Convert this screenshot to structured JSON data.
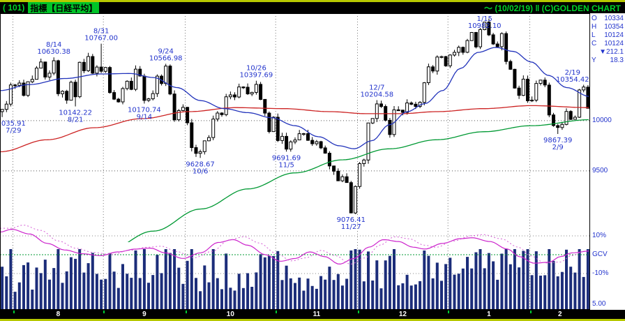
{
  "title_bar": {
    "left_prefix": "( 101)",
    "left_highlight": "指標【日経平均】",
    "right": "～ (10/02/19) ‖ (C)GOLDEN CHART"
  },
  "quote_panel": {
    "rows": [
      {
        "label": "O",
        "value": "10334"
      },
      {
        "label": "H",
        "value": "10354"
      },
      {
        "label": "L",
        "value": "10124"
      },
      {
        "label": "C",
        "value": "10124"
      },
      {
        "label": "",
        "value": "▼212.1"
      },
      {
        "label": "Y",
        "value": "18.3"
      }
    ]
  },
  "axis": {
    "price_labels": [
      {
        "text": "10000",
        "price": 10000
      },
      {
        "text": "9500",
        "price": 9500
      }
    ],
    "lower_labels": [
      {
        "text": "10%",
        "pct": 10
      },
      {
        "text": "GCV",
        "pct": 0
      },
      {
        "text": "-10%",
        "pct": -10
      }
    ],
    "volume_scale_label": "5.00"
  },
  "colors": {
    "background": "#000000",
    "panel_bg": "#ffffff",
    "edge_line": "#b6c800",
    "title_green": "#00d42a",
    "title_highlight_bg": "#00c428",
    "blue_text": "#2233cc",
    "candle": "#000000",
    "ma_blue": "#2233bb",
    "ma_red": "#cc2222",
    "ma_green": "#009933",
    "volume_bar": "#1c2d7a",
    "oscillator": "#cc22cc",
    "oscillator_dotted": "#d45cd4",
    "grid_dot": "#777777",
    "month_text": "#ffffff",
    "tick_green": "#00cc33"
  },
  "chart_data": {
    "type": "candlestick",
    "title": "日経平均 daily with moving averages, volume and GCV oscillator",
    "price_range_top": 11070,
    "price_range_bottom": 8790,
    "y_gridlines": [
      10000,
      9500
    ],
    "open_first": 10090,
    "closes": [
      10113,
      10165,
      10356,
      10352,
      10375,
      10252,
      10388,
      10412,
      10524,
      10585,
      10435,
      10473,
      10597,
      10268,
      10293,
      10204,
      10383,
      10238,
      10581,
      10497,
      10639,
      10473,
      10534,
      10492,
      10530,
      10280,
      10214,
      10187,
      10320,
      10393,
      10312,
      10513,
      10444,
      10202,
      10218,
      10270,
      10444,
      10370,
      10544,
      10266,
      10009,
      10100,
      10133,
      9979,
      9732,
      9674,
      9691,
      9799,
      9832,
      10016,
      10076,
      10060,
      10238,
      10257,
      10236,
      10336,
      10333,
      10267,
      10282,
      10362,
      10212,
      10075,
      9891,
      10034,
      9802,
      9844,
      9717,
      9789,
      9808,
      9870,
      9871,
      9804,
      9770,
      9791,
      9729,
      9676,
      9549,
      9497,
      9401,
      9441,
      9383,
      9081,
      9345,
      9572,
      9608,
      9977,
      10022,
      10167,
      10141,
      10004,
      9862,
      10108,
      10105,
      10083,
      10177,
      10164,
      10142,
      10183,
      10378,
      10536,
      10494,
      10634,
      10638,
      10546,
      10654,
      10681,
      10731,
      10681,
      10798,
      10879,
      10735,
      10907,
      10982,
      10855,
      10764,
      10737,
      10868,
      10590,
      10512,
      10325,
      10252,
      10414,
      10198,
      10205,
      10371,
      10404,
      10355,
      10057,
      9951,
      9932,
      9963,
      10092,
      10013,
      10034,
      10306,
      10335,
      10123.58
    ],
    "last_candle": {
      "open": 10334,
      "high": 10354.42,
      "low": 10123.58,
      "close": 10123.58
    },
    "month_start_indices": [
      3,
      24,
      43,
      64,
      83,
      104,
      123
    ],
    "month_labels": [
      "8",
      "9",
      "10",
      "11",
      "12",
      "1",
      "2"
    ],
    "key_points": [
      {
        "index": 12,
        "kind": "high",
        "price": 10630.38,
        "value_text": "10630.38",
        "date_text": "8/14"
      },
      {
        "index": 23,
        "kind": "high",
        "price": 10767.0,
        "value_text": "10767.00",
        "date_text": "8/31"
      },
      {
        "index": 38,
        "kind": "high",
        "price": 10566.98,
        "value_text": "10566.98",
        "date_text": "9/24"
      },
      {
        "index": 59,
        "kind": "high",
        "price": 10397.69,
        "value_text": "10397.69",
        "date_text": "10/26"
      },
      {
        "index": 87,
        "kind": "high",
        "price": 10204.58,
        "value_text": "10204.58",
        "date_text": "12/7"
      },
      {
        "index": 112,
        "kind": "high",
        "price": 10982.1,
        "value_text": "10982.10",
        "date_text": "1/15"
      },
      {
        "index": 136,
        "kind": "high",
        "price": 10354.42,
        "value_text": "10354.42",
        "date_text": "2/19"
      },
      {
        "index": 0,
        "kind": "low",
        "price": 10035.91,
        "value_text": "035.91",
        "date_text": "7/29"
      },
      {
        "index": 17,
        "kind": "low",
        "price": 10142.22,
        "value_text": "10142.22",
        "date_text": "8/21"
      },
      {
        "index": 33,
        "kind": "low",
        "price": 10170.74,
        "value_text": "10170.74",
        "date_text": "9/14"
      },
      {
        "index": 46,
        "kind": "low",
        "price": 9628.67,
        "value_text": "9628.67",
        "date_text": "10/6"
      },
      {
        "index": 66,
        "kind": "low",
        "price": 9691.69,
        "value_text": "9691.69",
        "date_text": "11/5"
      },
      {
        "index": 81,
        "kind": "low",
        "price": 9076.41,
        "value_text": "9076.41",
        "date_text": "11/27"
      },
      {
        "index": 129,
        "kind": "low",
        "price": 9867.39,
        "value_text": "9867.39",
        "date_text": "2/9"
      }
    ],
    "ma_lines": [
      {
        "name": "long-term-ma",
        "color": "#009933",
        "anchors": [
          [
            0,
            8400
          ],
          [
            0.1,
            8550
          ],
          [
            0.18,
            8700
          ],
          [
            0.26,
            8900
          ],
          [
            0.34,
            9120
          ],
          [
            0.42,
            9320
          ],
          [
            0.5,
            9480
          ],
          [
            0.58,
            9610
          ],
          [
            0.66,
            9720
          ],
          [
            0.74,
            9810
          ],
          [
            0.82,
            9890
          ],
          [
            0.9,
            9950
          ],
          [
            1,
            10010
          ]
        ]
      },
      {
        "name": "medium-term-ma",
        "color": "#cc2222",
        "anchors": [
          [
            0,
            9690
          ],
          [
            0.08,
            9810
          ],
          [
            0.16,
            9930
          ],
          [
            0.24,
            10020
          ],
          [
            0.32,
            10090
          ],
          [
            0.4,
            10130
          ],
          [
            0.48,
            10120
          ],
          [
            0.56,
            10090
          ],
          [
            0.62,
            10070
          ],
          [
            0.68,
            10070
          ],
          [
            0.74,
            10090
          ],
          [
            0.82,
            10120
          ],
          [
            0.9,
            10150
          ],
          [
            1,
            10130
          ]
        ]
      },
      {
        "name": "short-term-ma",
        "color": "#2233bb",
        "anchors": [
          [
            0,
            10300
          ],
          [
            0.05,
            10360
          ],
          [
            0.11,
            10420
          ],
          [
            0.17,
            10465
          ],
          [
            0.22,
            10470
          ],
          [
            0.26,
            10430
          ],
          [
            0.3,
            10330
          ],
          [
            0.34,
            10200
          ],
          [
            0.38,
            10120
          ],
          [
            0.42,
            10080
          ],
          [
            0.46,
            10030
          ],
          [
            0.5,
            9950
          ],
          [
            0.54,
            9840
          ],
          [
            0.575,
            9750
          ],
          [
            0.6,
            9720
          ],
          [
            0.63,
            9800
          ],
          [
            0.66,
            9960
          ],
          [
            0.69,
            10090
          ],
          [
            0.72,
            10170
          ],
          [
            0.75,
            10300
          ],
          [
            0.78,
            10520
          ],
          [
            0.81,
            10680
          ],
          [
            0.84,
            10730
          ],
          [
            0.87,
            10690
          ],
          [
            0.9,
            10585
          ],
          [
            0.93,
            10450
          ],
          [
            0.96,
            10330
          ],
          [
            1,
            10240
          ]
        ]
      }
    ],
    "oscillator": {
      "range_pct": [
        -10,
        10
      ],
      "solid": [
        [
          0,
          12
        ],
        [
          0.02,
          13.5
        ],
        [
          0.05,
          11
        ],
        [
          0.08,
          6
        ],
        [
          0.11,
          2.5
        ],
        [
          0.14,
          0.5
        ],
        [
          0.17,
          -0.5
        ],
        [
          0.2,
          1.5
        ],
        [
          0.23,
          3
        ],
        [
          0.255,
          3.5
        ],
        [
          0.28,
          1
        ],
        [
          0.31,
          -2
        ],
        [
          0.34,
          1
        ],
        [
          0.37,
          6.5
        ],
        [
          0.395,
          8
        ],
        [
          0.42,
          5
        ],
        [
          0.45,
          0
        ],
        [
          0.475,
          -3.5
        ],
        [
          0.5,
          -2
        ],
        [
          0.525,
          1.5
        ],
        [
          0.55,
          -1
        ],
        [
          0.575,
          -5
        ],
        [
          0.6,
          -2
        ],
        [
          0.625,
          4
        ],
        [
          0.65,
          8
        ],
        [
          0.675,
          7
        ],
        [
          0.7,
          4
        ],
        [
          0.72,
          3
        ],
        [
          0.75,
          6
        ],
        [
          0.78,
          8.5
        ],
        [
          0.8,
          9
        ],
        [
          0.83,
          7
        ],
        [
          0.86,
          3
        ],
        [
          0.88,
          -1
        ],
        [
          0.905,
          -4.5
        ],
        [
          0.93,
          -4
        ],
        [
          0.95,
          -1
        ],
        [
          0.97,
          1
        ],
        [
          1,
          2
        ]
      ]
    }
  }
}
